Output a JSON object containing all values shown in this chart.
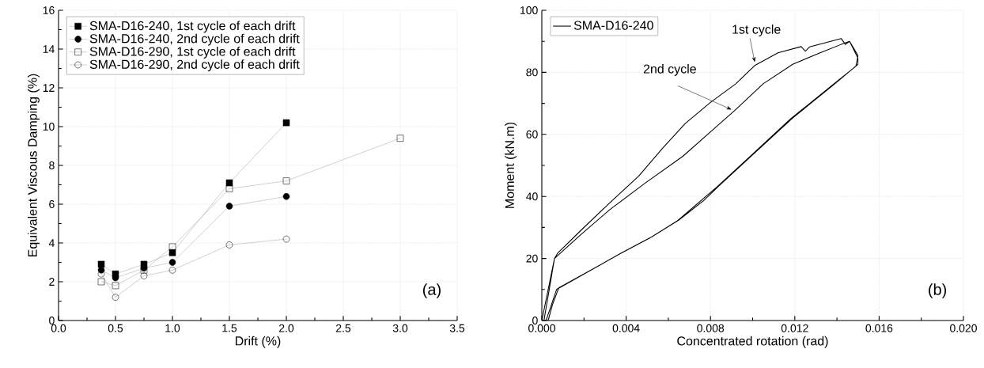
{
  "chart_data": [
    {
      "type": "line",
      "xlabel": "Drift (%)",
      "ylabel": "Equivalent Viscous Damping (%)",
      "xlim": [
        0,
        3.5
      ],
      "ylim": [
        0,
        16
      ],
      "xticks": [
        {
          "value": 0,
          "label": "0.0"
        },
        {
          "value": 0.5,
          "label": "0.5"
        },
        {
          "value": 1,
          "label": "1.0"
        },
        {
          "value": 1.5,
          "label": "1.5"
        },
        {
          "value": 2,
          "label": "2.0"
        },
        {
          "value": 2.5,
          "label": "2.5"
        },
        {
          "value": 3,
          "label": "3.0"
        },
        {
          "value": 3.5,
          "label": "3.5"
        }
      ],
      "yticks": [
        0,
        2,
        4,
        6,
        8,
        10,
        12,
        14,
        16
      ],
      "grid": true,
      "legend": "top left",
      "annotations": [
        "(a)"
      ],
      "series": [
        {
          "name": "SMA-D16-240, 1st cycle of each drift",
          "color": "#000000",
          "marker": "square",
          "x": [
            0.375,
            0.5,
            0.75,
            1.0,
            1.5,
            2.0
          ],
          "values": [
            2.9,
            2.4,
            2.9,
            3.5,
            7.1,
            10.2
          ]
        },
        {
          "name": "SMA-D16-240, 2nd cycle of each drift",
          "color": "#000000",
          "marker": "circle",
          "x": [
            0.375,
            0.5,
            0.75,
            1.0,
            1.5,
            2.0
          ],
          "values": [
            2.6,
            2.2,
            2.7,
            3.0,
            5.9,
            6.4
          ]
        },
        {
          "name": "SMA-D16-290, 1st cycle of each drift",
          "color": "#000000",
          "marker": "square",
          "x": [
            0.375,
            0.5,
            0.75,
            1.0,
            1.5,
            2.0,
            3.0
          ],
          "values": [
            2.0,
            1.8,
            2.6,
            3.8,
            6.8,
            7.2,
            9.4
          ]
        },
        {
          "name": "SMA-D16-290, 2nd cycle of each drift",
          "color": "#000000",
          "marker": "circle",
          "x": [
            0.375,
            0.5,
            0.75,
            1.0,
            1.5,
            2.0
          ],
          "values": [
            2.4,
            1.2,
            2.3,
            2.6,
            3.9,
            4.2
          ]
        }
      ]
    },
    {
      "type": "line",
      "xlabel": "Concentrated rotation (rad)",
      "ylabel": "Moment (kN.m)",
      "xlim": [
        0,
        0.02
      ],
      "ylim": [
        0,
        100
      ],
      "xticks": [
        {
          "value": 0,
          "label": "0.000"
        },
        {
          "value": 0.004,
          "label": "0.004"
        },
        {
          "value": 0.008,
          "label": "0.008"
        },
        {
          "value": 0.012,
          "label": "0.012"
        },
        {
          "value": 0.016,
          "label": "0.016"
        },
        {
          "value": 0.02,
          "label": "0.020"
        }
      ],
      "yticks": [
        0,
        20,
        40,
        60,
        80,
        100
      ],
      "grid": true,
      "legend": "top left",
      "annotations": [
        {
          "text": "1st cycle",
          "x": 0.0101,
          "y": 83.3
        },
        {
          "text": "2nd cycle",
          "x": 0.009,
          "y": 68
        },
        "(b)"
      ],
      "series": [
        {
          "name": "SMA-D16-240",
          "color": "#000000",
          "marker": "none",
          "x": [
            0,
            0.0006,
            0.00075,
            0.0018,
            0.0032,
            0.0046,
            0.0057,
            0.0068,
            0.008,
            0.0092,
            0.0101,
            0.0112,
            0.0123,
            0.0125,
            0.0127,
            0.0142,
            0.0144,
            0.0146,
            0.015,
            0.015,
            0.0139,
            0.0119,
            0.01,
            0.0084,
            0.0077,
            0.0065,
            0.0052,
            0.0038,
            0.0025,
            0.0008,
            0.0005,
            0.0003,
            0.0001,
            0.0006,
            0.0018,
            0.0032,
            0.0049,
            0.0067,
            0.008,
            0.0092,
            0.0105,
            0.0119,
            0.0132,
            0.0142,
            0.0146,
            0.015,
            0.0149,
            0.0138,
            0.0118,
            0.0099,
            0.0083,
            0.0064,
            0.0051,
            0.0037,
            0.0024,
            0.0007,
            0.0004,
            0.0002
          ],
          "values": [
            0,
            20,
            21.7,
            28.7,
            37.8,
            46.6,
            55.3,
            63.5,
            70.3,
            76.3,
            82.2,
            86.3,
            88.3,
            86.8,
            88.2,
            90.9,
            89,
            90,
            84.5,
            82.6,
            76.3,
            65.3,
            53.4,
            43.4,
            38.8,
            32.4,
            26.9,
            21.9,
            16.9,
            10.5,
            5,
            0,
            0,
            20,
            27.4,
            35.6,
            44.3,
            53,
            60.8,
            68,
            76.3,
            82.6,
            86.3,
            89,
            90,
            85.4,
            82,
            76,
            65,
            53,
            43,
            32,
            26.5,
            21.5,
            16.5,
            10,
            4,
            0
          ]
        }
      ]
    }
  ]
}
